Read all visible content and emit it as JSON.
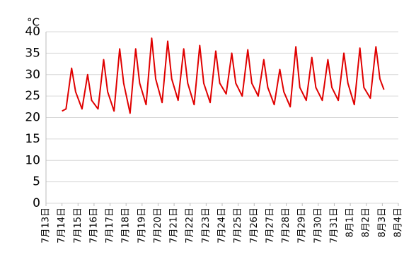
{
  "chart_data": {
    "type": "line",
    "unit_label": "°C",
    "x": [
      1.0,
      1.25,
      1.6,
      1.85,
      2.25,
      2.6,
      2.85,
      3.25,
      3.6,
      3.85,
      4.25,
      4.6,
      4.85,
      5.25,
      5.6,
      5.85,
      6.25,
      6.6,
      6.85,
      7.25,
      7.6,
      7.85,
      8.25,
      8.6,
      8.85,
      9.25,
      9.6,
      9.85,
      10.25,
      10.6,
      10.85,
      11.25,
      11.6,
      11.85,
      12.25,
      12.6,
      12.85,
      13.25,
      13.6,
      13.85,
      14.25,
      14.6,
      14.85,
      15.25,
      15.6,
      15.85,
      16.25,
      16.6,
      16.85,
      17.25,
      17.6,
      17.85,
      18.25,
      18.6,
      18.85,
      19.25,
      19.6,
      19.85,
      20.25,
      20.6,
      20.85,
      21.1
    ],
    "series": [
      {
        "color": "#e00000",
        "values": [
          21.5,
          22,
          31.5,
          26,
          22,
          30,
          24,
          22,
          33.5,
          26,
          21.5,
          36,
          28,
          21,
          36,
          28,
          23,
          38.5,
          29,
          23.5,
          37.8,
          29,
          24,
          36,
          28,
          23,
          36.8,
          28,
          23.5,
          35.5,
          28,
          25.5,
          35,
          28,
          25,
          35.8,
          28,
          25,
          33.5,
          27,
          23,
          31.2,
          26,
          22.5,
          36.5,
          27,
          24,
          34,
          27,
          24,
          33.5,
          27,
          24,
          35,
          28,
          23,
          36.2,
          27,
          24.5,
          36.5,
          29,
          26.5
        ]
      }
    ],
    "xlim": [
      0,
      22
    ],
    "xticks": [
      {
        "value": 0,
        "label": "7月13日"
      },
      {
        "value": 1,
        "label": "7月14日"
      },
      {
        "value": 2,
        "label": "7月15日"
      },
      {
        "value": 3,
        "label": "7月16日"
      },
      {
        "value": 4,
        "label": "7月17日"
      },
      {
        "value": 5,
        "label": "7月18日"
      },
      {
        "value": 6,
        "label": "7月19日"
      },
      {
        "value": 7,
        "label": "7月20日"
      },
      {
        "value": 8,
        "label": "7月21日"
      },
      {
        "value": 9,
        "label": "7月22日"
      },
      {
        "value": 10,
        "label": "7月23日"
      },
      {
        "value": 11,
        "label": "7月24日"
      },
      {
        "value": 12,
        "label": "7月25日"
      },
      {
        "value": 13,
        "label": "7月26日"
      },
      {
        "value": 14,
        "label": "7月27日"
      },
      {
        "value": 15,
        "label": "7月28日"
      },
      {
        "value": 16,
        "label": "7月29日"
      },
      {
        "value": 17,
        "label": "7月30日"
      },
      {
        "value": 18,
        "label": "7月31日"
      },
      {
        "value": 19,
        "label": "8月1日"
      },
      {
        "value": 20,
        "label": "8月2日"
      },
      {
        "value": 21,
        "label": "8月3日"
      },
      {
        "value": 22,
        "label": "8月4日"
      }
    ],
    "ylim": [
      0,
      40
    ],
    "yticks": [
      0,
      5,
      10,
      15,
      20,
      25,
      30,
      35,
      40
    ],
    "grid": true
  }
}
